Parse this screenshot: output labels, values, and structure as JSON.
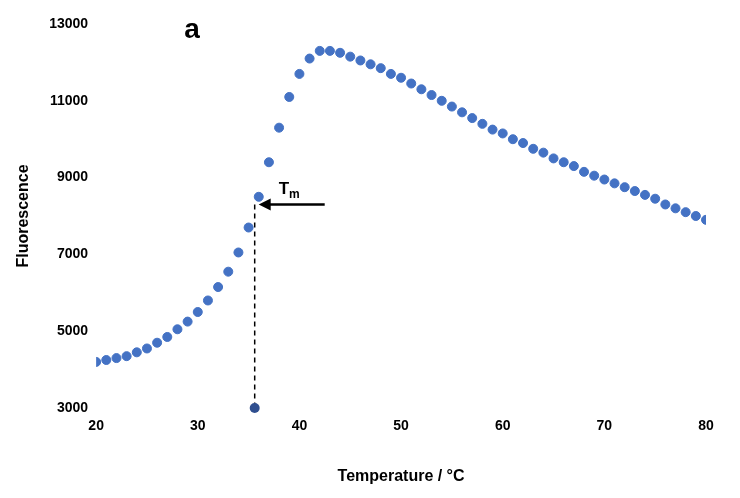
{
  "chart_data": {
    "type": "scatter",
    "panel": "a",
    "x_label": "Temperature / °C",
    "y_label": "Fluorescence",
    "x": [
      20,
      21,
      22,
      23,
      24,
      25,
      26,
      27,
      28,
      29,
      30,
      31,
      32,
      33,
      34,
      35,
      36,
      37,
      38,
      39,
      40,
      41,
      42,
      43,
      44,
      45,
      46,
      47,
      48,
      49,
      50,
      51,
      52,
      53,
      54,
      55,
      56,
      57,
      58,
      59,
      60,
      61,
      62,
      63,
      64,
      65,
      66,
      67,
      68,
      69,
      70,
      71,
      72,
      73,
      74,
      75,
      76,
      77,
      78,
      79,
      80
    ],
    "values": [
      4200,
      4250,
      4300,
      4350,
      4450,
      4550,
      4700,
      4850,
      5050,
      5250,
      5500,
      5800,
      6150,
      6550,
      7050,
      7700,
      8500,
      9400,
      10300,
      11100,
      11700,
      12100,
      12300,
      12300,
      12250,
      12150,
      12050,
      11950,
      11850,
      11700,
      11600,
      11450,
      11300,
      11150,
      11000,
      10850,
      10700,
      10550,
      10400,
      10250,
      10150,
      10000,
      9900,
      9750,
      9650,
      9500,
      9400,
      9300,
      9150,
      9050,
      8950,
      8850,
      8750,
      8650,
      8550,
      8450,
      8300,
      8200,
      8100,
      8000,
      7900
    ],
    "color": "#4472c4",
    "marker": "circle",
    "xlim": [
      20,
      80
    ],
    "xticks": [
      20,
      30,
      40,
      50,
      60,
      70,
      80
    ],
    "ylim": [
      3000,
      13000
    ],
    "yticks": [
      3000,
      5000,
      7000,
      9000,
      11000,
      13000
    ],
    "grid": false,
    "annotations": [
      {
        "text": "Tm",
        "x": 35.6,
        "y": 8300
      }
    ]
  }
}
